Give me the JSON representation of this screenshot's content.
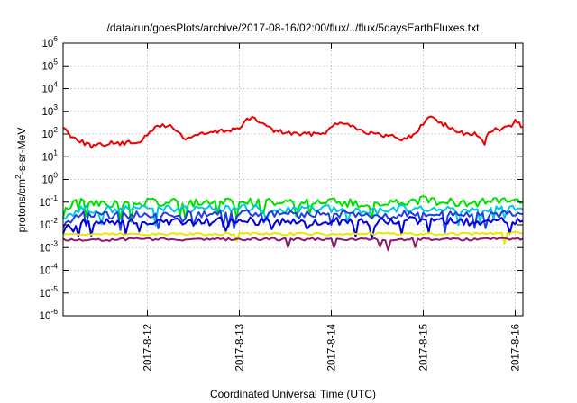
{
  "chart_data": {
    "type": "line",
    "title": "/data/run/goesPlots/archive/2017-08-16/02:00/flux/../flux/5daysEarthFluxes.txt",
    "xlabel": "Coordinated Universal Time (UTC)",
    "ylabel": {
      "prefix": "protons/cm",
      "sup": "2",
      "suffix": "-s-sr-MeV"
    },
    "y_scale": "log",
    "ylim": [
      1e-06,
      1000000.0
    ],
    "y_ticks": [
      {
        "base": "10",
        "exp": "-6",
        "value": 1e-06
      },
      {
        "base": "10",
        "exp": "-5",
        "value": 1e-05
      },
      {
        "base": "10",
        "exp": "-4",
        "value": 0.0001
      },
      {
        "base": "10",
        "exp": "-3",
        "value": 0.001
      },
      {
        "base": "10",
        "exp": "-2",
        "value": 0.01
      },
      {
        "base": "10",
        "exp": "-1",
        "value": 0.1
      },
      {
        "base": "10",
        "exp": "0",
        "value": 1
      },
      {
        "base": "10",
        "exp": "1",
        "value": 10
      },
      {
        "base": "10",
        "exp": "2",
        "value": 100
      },
      {
        "base": "10",
        "exp": "3",
        "value": 1000
      },
      {
        "base": "10",
        "exp": "4",
        "value": 10000
      },
      {
        "base": "10",
        "exp": "5",
        "value": 100000
      },
      {
        "base": "10",
        "exp": "6",
        "value": 1000000
      }
    ],
    "x_range_days": [
      "2017-08-11T02:00",
      "2017-08-16T02:00"
    ],
    "x_ticks": [
      {
        "label": "2017-8-12",
        "date": "2017-08-12"
      },
      {
        "label": "2017-8-13",
        "date": "2017-08-13"
      },
      {
        "label": "2017-8-14",
        "date": "2017-08-14"
      },
      {
        "label": "2017-8-15",
        "date": "2017-08-15"
      },
      {
        "label": "2017-8-16",
        "date": "2017-08-16"
      }
    ],
    "grid": true,
    "series": [
      {
        "color": "#ee0000",
        "points": [
          [
            "2017-08-11T02:00",
            200
          ],
          [
            "2017-08-11T04:00",
            90
          ],
          [
            "2017-08-11T07:00",
            45
          ],
          [
            "2017-08-11T10:00",
            28
          ],
          [
            "2017-08-11T14:00",
            40
          ],
          [
            "2017-08-11T18:00",
            38
          ],
          [
            "2017-08-11T22:00",
            50
          ],
          [
            "2017-08-12T00:00",
            80
          ],
          [
            "2017-08-12T02:00",
            200
          ],
          [
            "2017-08-12T04:00",
            250
          ],
          [
            "2017-08-12T06:00",
            220
          ],
          [
            "2017-08-12T08:00",
            120
          ],
          [
            "2017-08-12T10:00",
            60
          ],
          [
            "2017-08-12T12:00",
            85
          ],
          [
            "2017-08-12T16:00",
            110
          ],
          [
            "2017-08-12T20:00",
            140
          ],
          [
            "2017-08-13T00:00",
            180
          ],
          [
            "2017-08-13T02:00",
            420
          ],
          [
            "2017-08-13T04:00",
            470
          ],
          [
            "2017-08-13T06:00",
            300
          ],
          [
            "2017-08-13T09:00",
            140
          ],
          [
            "2017-08-13T13:00",
            110
          ],
          [
            "2017-08-13T17:00",
            95
          ],
          [
            "2017-08-13T20:00",
            110
          ],
          [
            "2017-08-13T23:00",
            130
          ],
          [
            "2017-08-14T01:00",
            280
          ],
          [
            "2017-08-14T03:00",
            350
          ],
          [
            "2017-08-14T05:00",
            260
          ],
          [
            "2017-08-14T08:00",
            140
          ],
          [
            "2017-08-14T12:00",
            90
          ],
          [
            "2017-08-14T16:00",
            80
          ],
          [
            "2017-08-14T19:00",
            60
          ],
          [
            "2017-08-14T22:00",
            100
          ],
          [
            "2017-08-15T00:00",
            300
          ],
          [
            "2017-08-15T02:00",
            620
          ],
          [
            "2017-08-15T04:00",
            380
          ],
          [
            "2017-08-15T07:00",
            180
          ],
          [
            "2017-08-15T10:00",
            110
          ],
          [
            "2017-08-15T14:00",
            100
          ],
          [
            "2017-08-15T16:00",
            30
          ],
          [
            "2017-08-15T17:00",
            130
          ],
          [
            "2017-08-15T20:00",
            160
          ],
          [
            "2017-08-15T23:00",
            220
          ],
          [
            "2017-08-16T00:00",
            400
          ],
          [
            "2017-08-16T01:00",
            280
          ],
          [
            "2017-08-16T02:00",
            200
          ]
        ]
      },
      {
        "color": "#00e000",
        "points": [
          [
            "2017-08-11T02:00",
            0.04
          ],
          [
            "2017-08-11T06:00",
            0.11
          ],
          [
            "2017-08-11T12:00",
            0.08
          ],
          [
            "2017-08-12T00:00",
            0.1
          ],
          [
            "2017-08-12T12:00",
            0.09
          ],
          [
            "2017-08-13T00:00",
            0.11
          ],
          [
            "2017-08-13T12:00",
            0.09
          ],
          [
            "2017-08-14T00:00",
            0.1
          ],
          [
            "2017-08-14T12:00",
            0.08
          ],
          [
            "2017-08-15T00:00",
            0.12
          ],
          [
            "2017-08-15T12:00",
            0.09
          ],
          [
            "2017-08-16T00:00",
            0.13
          ],
          [
            "2017-08-16T02:00",
            0.1
          ]
        ]
      },
      {
        "color": "#00c8e0",
        "points": [
          [
            "2017-08-11T02:00",
            0.015
          ],
          [
            "2017-08-11T06:00",
            0.05
          ],
          [
            "2017-08-11T12:00",
            0.04
          ],
          [
            "2017-08-12T00:00",
            0.05
          ],
          [
            "2017-08-12T12:00",
            0.045
          ],
          [
            "2017-08-13T00:00",
            0.055
          ],
          [
            "2017-08-13T12:00",
            0.045
          ],
          [
            "2017-08-14T00:00",
            0.05
          ],
          [
            "2017-08-14T12:00",
            0.04
          ],
          [
            "2017-08-15T00:00",
            0.06
          ],
          [
            "2017-08-15T12:00",
            0.045
          ],
          [
            "2017-08-16T00:00",
            0.06
          ],
          [
            "2017-08-16T02:00",
            0.05
          ]
        ]
      },
      {
        "color": "#1e40e0",
        "points": [
          [
            "2017-08-11T02:00",
            0.01
          ],
          [
            "2017-08-11T06:00",
            0.03
          ],
          [
            "2017-08-11T12:00",
            0.025
          ],
          [
            "2017-08-12T00:00",
            0.03
          ],
          [
            "2017-08-12T12:00",
            0.028
          ],
          [
            "2017-08-13T00:00",
            0.032
          ],
          [
            "2017-08-13T12:00",
            0.027
          ],
          [
            "2017-08-14T00:00",
            0.03
          ],
          [
            "2017-08-14T12:00",
            0.025
          ],
          [
            "2017-08-15T00:00",
            0.035
          ],
          [
            "2017-08-15T12:00",
            0.028
          ],
          [
            "2017-08-16T00:00",
            0.032
          ],
          [
            "2017-08-16T02:00",
            0.03
          ]
        ]
      },
      {
        "color": "#0000d8",
        "points": [
          [
            "2017-08-11T02:00",
            0.006
          ],
          [
            "2017-08-11T06:00",
            0.014
          ],
          [
            "2017-08-11T12:00",
            0.012
          ],
          [
            "2017-08-12T00:00",
            0.015
          ],
          [
            "2017-08-12T12:00",
            0.013
          ],
          [
            "2017-08-13T00:00",
            0.016
          ],
          [
            "2017-08-13T12:00",
            0.013
          ],
          [
            "2017-08-14T00:00",
            0.015
          ],
          [
            "2017-08-14T12:00",
            0.012
          ],
          [
            "2017-08-15T00:00",
            0.017
          ],
          [
            "2017-08-15T12:00",
            0.013
          ],
          [
            "2017-08-16T00:00",
            0.016
          ],
          [
            "2017-08-16T02:00",
            0.015
          ]
        ]
      },
      {
        "color": "#e8e800",
        "points": [
          [
            "2017-08-11T02:00",
            0.0035
          ],
          [
            "2017-08-11T12:00",
            0.004
          ],
          [
            "2017-08-12T00:00",
            0.004
          ],
          [
            "2017-08-12T12:00",
            0.004
          ],
          [
            "2017-08-13T00:00",
            0.004
          ],
          [
            "2017-08-13T12:00",
            0.004
          ],
          [
            "2017-08-14T00:00",
            0.004
          ],
          [
            "2017-08-14T12:00",
            0.004
          ],
          [
            "2017-08-15T00:00",
            0.004
          ],
          [
            "2017-08-15T12:00",
            0.004
          ],
          [
            "2017-08-16T00:00",
            0.0042
          ],
          [
            "2017-08-16T02:00",
            0.004
          ]
        ]
      },
      {
        "color": "#8b1a6b",
        "points": [
          [
            "2017-08-11T02:00",
            0.0022
          ],
          [
            "2017-08-11T12:00",
            0.0022
          ],
          [
            "2017-08-12T00:00",
            0.0024
          ],
          [
            "2017-08-12T12:00",
            0.0023
          ],
          [
            "2017-08-13T00:00",
            0.0024
          ],
          [
            "2017-08-13T12:00",
            0.0023
          ],
          [
            "2017-08-14T00:00",
            0.0024
          ],
          [
            "2017-08-14T12:00",
            0.0023
          ],
          [
            "2017-08-15T00:00",
            0.0024
          ],
          [
            "2017-08-15T12:00",
            0.0023
          ],
          [
            "2017-08-16T00:00",
            0.0025
          ],
          [
            "2017-08-16T02:00",
            0.0024
          ]
        ]
      }
    ]
  }
}
